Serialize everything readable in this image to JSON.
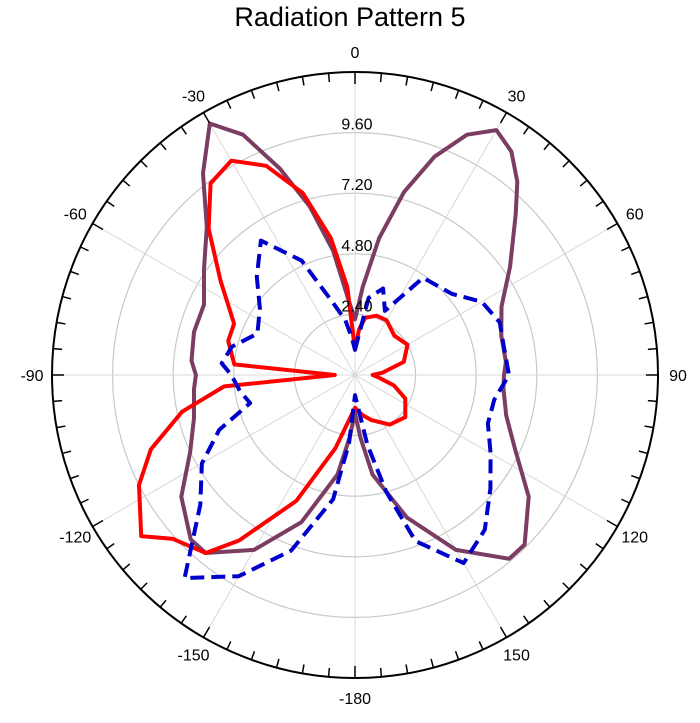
{
  "chart_data": {
    "type": "polar-line",
    "title": "Radiation Pattern 5",
    "r_max": 12,
    "ring_values": [
      2.4,
      4.8,
      7.2,
      9.6
    ],
    "ring_labels": [
      "2.40",
      "4.80",
      "7.20",
      "9.60"
    ],
    "angle_labels": [
      {
        "angle": 0,
        "text": "0"
      },
      {
        "angle": 30,
        "text": "30"
      },
      {
        "angle": 60,
        "text": "60"
      },
      {
        "angle": 90,
        "text": "90"
      },
      {
        "angle": 120,
        "text": "120"
      },
      {
        "angle": 150,
        "text": "150"
      },
      {
        "angle": 180,
        "text": "-180"
      },
      {
        "angle": -150,
        "text": "-150"
      },
      {
        "angle": -120,
        "text": "-120"
      },
      {
        "angle": -90,
        "text": "-90"
      },
      {
        "angle": -60,
        "text": "-60"
      },
      {
        "angle": -30,
        "text": "-30"
      }
    ],
    "series": [
      {
        "color": "#7b3d62",
        "style": "solid",
        "points": [
          [
            0,
            2.2
          ],
          [
            5,
            3.5
          ],
          [
            10,
            5.5
          ],
          [
            15,
            7.5
          ],
          [
            20,
            9.2
          ],
          [
            25,
            10.5
          ],
          [
            30,
            11.2
          ],
          [
            35,
            10.8
          ],
          [
            40,
            10.0
          ],
          [
            45,
            9.0
          ],
          [
            55,
            7.5
          ],
          [
            65,
            6.4
          ],
          [
            75,
            6.0
          ],
          [
            85,
            6.0
          ],
          [
            90,
            5.9
          ],
          [
            95,
            5.9
          ],
          [
            105,
            6.2
          ],
          [
            115,
            7.0
          ],
          [
            125,
            8.4
          ],
          [
            135,
            9.5
          ],
          [
            140,
            9.5
          ],
          [
            150,
            8.0
          ],
          [
            160,
            6.0
          ],
          [
            170,
            4.0
          ],
          [
            175,
            2.5
          ],
          [
            180,
            1.5
          ],
          [
            185,
            2.5
          ],
          [
            190,
            4.0
          ],
          [
            200,
            6.2
          ],
          [
            210,
            8.0
          ],
          [
            220,
            9.2
          ],
          [
            225,
            9.2
          ],
          [
            235,
            8.4
          ],
          [
            245,
            7.2
          ],
          [
            255,
            6.6
          ],
          [
            265,
            6.4
          ],
          [
            270,
            6.3
          ],
          [
            275,
            6.5
          ],
          [
            285,
            6.6
          ],
          [
            295,
            6.6
          ],
          [
            305,
            7.3
          ],
          [
            315,
            8.3
          ],
          [
            323,
            10.0
          ],
          [
            330,
            11.5
          ],
          [
            335,
            10.5
          ],
          [
            340,
            8.7
          ],
          [
            345,
            6.9
          ],
          [
            350,
            5.0
          ],
          [
            355,
            3.0
          ],
          [
            360,
            2.2
          ]
        ]
      },
      {
        "color": "#ff0000",
        "style": "solid",
        "points": [
          [
            0,
            1.0
          ],
          [
            5,
            1.8
          ],
          [
            10,
            2.3
          ],
          [
            20,
            2.5
          ],
          [
            30,
            2.5
          ],
          [
            45,
            2.2
          ],
          [
            60,
            2.4
          ],
          [
            75,
            2.0
          ],
          [
            85,
            1.1
          ],
          [
            90,
            0.7
          ],
          [
            95,
            0.9
          ],
          [
            105,
            1.6
          ],
          [
            115,
            2.2
          ],
          [
            130,
            2.6
          ],
          [
            145,
            2.4
          ],
          [
            160,
            1.9
          ],
          [
            170,
            1.6
          ],
          [
            180,
            1.3
          ],
          [
            195,
            3.0
          ],
          [
            205,
            5.5
          ],
          [
            215,
            8.0
          ],
          [
            220,
            9.2
          ],
          [
            228,
            9.7
          ],
          [
            233,
            10.6
          ],
          [
            243,
            9.6
          ],
          [
            250,
            8.6
          ],
          [
            258,
            7.0
          ],
          [
            265,
            5.2
          ],
          [
            270,
            0.8
          ],
          [
            275,
            4.8
          ],
          [
            285,
            5.2
          ],
          [
            293,
            5.2
          ],
          [
            305,
            6.5
          ],
          [
            315,
            8.2
          ],
          [
            323,
            9.5
          ],
          [
            330,
            9.8
          ],
          [
            337,
            9.0
          ],
          [
            344,
            7.5
          ],
          [
            350,
            5.5
          ],
          [
            355,
            3.5
          ],
          [
            360,
            1.0
          ]
        ]
      },
      {
        "color": "#0000cc",
        "style": "dashed",
        "points": [
          [
            0,
            1.0
          ],
          [
            10,
            3.1
          ],
          [
            18,
            3.6
          ],
          [
            25,
            2.8
          ],
          [
            35,
            4.7
          ],
          [
            50,
            5.0
          ],
          [
            60,
            5.8
          ],
          [
            70,
            6.1
          ],
          [
            80,
            6.0
          ],
          [
            90,
            6.1
          ],
          [
            100,
            5.6
          ],
          [
            110,
            5.6
          ],
          [
            120,
            6.2
          ],
          [
            130,
            7.0
          ],
          [
            140,
            8.0
          ],
          [
            150,
            8.6
          ],
          [
            160,
            7.0
          ],
          [
            165,
            4.8
          ],
          [
            170,
            2.8
          ],
          [
            180,
            0.8
          ],
          [
            185,
            2.7
          ],
          [
            190,
            5.0
          ],
          [
            200,
            7.4
          ],
          [
            210,
            9.2
          ],
          [
            220,
            10.5
          ],
          [
            230,
            8.0
          ],
          [
            240,
            7.0
          ],
          [
            248,
            5.8
          ],
          [
            255,
            4.3
          ],
          [
            262,
            4.6
          ],
          [
            270,
            4.9
          ],
          [
            275,
            5.3
          ],
          [
            283,
            5.0
          ],
          [
            293,
            4.2
          ],
          [
            305,
            4.6
          ],
          [
            315,
            5.5
          ],
          [
            325,
            6.5
          ],
          [
            335,
            5.0
          ],
          [
            343,
            3.0
          ],
          [
            350,
            2.2
          ],
          [
            355,
            1.5
          ],
          [
            360,
            1.0
          ]
        ]
      }
    ]
  }
}
